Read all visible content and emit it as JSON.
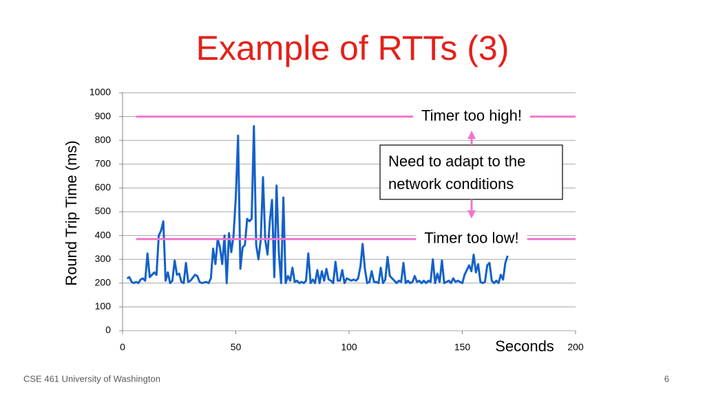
{
  "chart_data": {
    "type": "line",
    "title": "Example of RTTs (3)",
    "x_label": "Seconds",
    "y_label": "Round Trip Time (ms)",
    "xlim": [
      0,
      200
    ],
    "xticks": [
      0,
      50,
      100,
      150,
      200
    ],
    "ylim": [
      0,
      1000
    ],
    "yticks": [
      0,
      100,
      200,
      300,
      400,
      500,
      600,
      700,
      800,
      900,
      1000
    ],
    "grid": true,
    "x": [
      2,
      3,
      4,
      5,
      6,
      7,
      8,
      9,
      10,
      11,
      12,
      13,
      14,
      15,
      16,
      17,
      18,
      19,
      20,
      21,
      22,
      23,
      24,
      25,
      26,
      27,
      28,
      29,
      30,
      32,
      33,
      34,
      35,
      37,
      38,
      39,
      40,
      41,
      42,
      43,
      44,
      45,
      46,
      47,
      48,
      49,
      50,
      51,
      52,
      53,
      54,
      55,
      56,
      57,
      58,
      59,
      60,
      61,
      62,
      63,
      64,
      65,
      66,
      67,
      68,
      69,
      70,
      71,
      72,
      73,
      74,
      75,
      76,
      77,
      78,
      79,
      80,
      81,
      82,
      83,
      84,
      85,
      86,
      87,
      88,
      89,
      90,
      91,
      92,
      93,
      94,
      95,
      96,
      97,
      98,
      99,
      100,
      101,
      102,
      103,
      104,
      105,
      106,
      107,
      108,
      109,
      110,
      111,
      112,
      113,
      114,
      115,
      116,
      117,
      118,
      119,
      120,
      121,
      122,
      123,
      124,
      125,
      126,
      127,
      128,
      129,
      130,
      131,
      132,
      133,
      134,
      135,
      136,
      137,
      138,
      139,
      140,
      141,
      142,
      143,
      144,
      145,
      146,
      147,
      148,
      149,
      150,
      151,
      152,
      153,
      154,
      155,
      156,
      157,
      158,
      159,
      160,
      161,
      162,
      163,
      164,
      165,
      166,
      167,
      168,
      169,
      170
    ],
    "series": [
      {
        "name": "RTT",
        "color": "#1461c8",
        "values": [
          220,
          225,
          205,
          200,
          205,
          200,
          215,
          220,
          210,
          325,
          225,
          235,
          245,
          235,
          400,
          420,
          460,
          210,
          245,
          200,
          210,
          295,
          235,
          240,
          205,
          200,
          285,
          205,
          210,
          235,
          230,
          205,
          200,
          205,
          200,
          220,
          345,
          280,
          385,
          350,
          280,
          400,
          200,
          410,
          330,
          400,
          560,
          820,
          260,
          350,
          360,
          470,
          460,
          470,
          860,
          360,
          300,
          380,
          645,
          380,
          320,
          460,
          550,
          225,
          610,
          330,
          200,
          560,
          200,
          230,
          210,
          265,
          205,
          210,
          200,
          205,
          200,
          210,
          325,
          200,
          215,
          200,
          255,
          200,
          250,
          210,
          260,
          215,
          210,
          200,
          290,
          210,
          210,
          255,
          200,
          220,
          215,
          210,
          215,
          210,
          220,
          270,
          365,
          260,
          200,
          205,
          250,
          205,
          205,
          200,
          265,
          200,
          215,
          310,
          230,
          220,
          210,
          200,
          210,
          205,
          285,
          200,
          210,
          200,
          205,
          230,
          205,
          210,
          200,
          210,
          200,
          210,
          205,
          300,
          200,
          240,
          205,
          295,
          200,
          205,
          210,
          200,
          220,
          205,
          210,
          205,
          200,
          235,
          255,
          275,
          250,
          320,
          245,
          280,
          205,
          200,
          205,
          275,
          285,
          210,
          200,
          210,
          200,
          235,
          215,
          285,
          315
        ]
      }
    ],
    "reference_lines": [
      {
        "value": 900,
        "label": "Timer too high!",
        "color": "#f075d0"
      },
      {
        "value": 385,
        "label": "Timer too low!",
        "color": "#f075d0"
      }
    ],
    "callout": [
      "Need to adapt to the",
      "network conditions"
    ]
  },
  "footer": {
    "left": "CSE 461 University of Washington",
    "page": "6"
  }
}
